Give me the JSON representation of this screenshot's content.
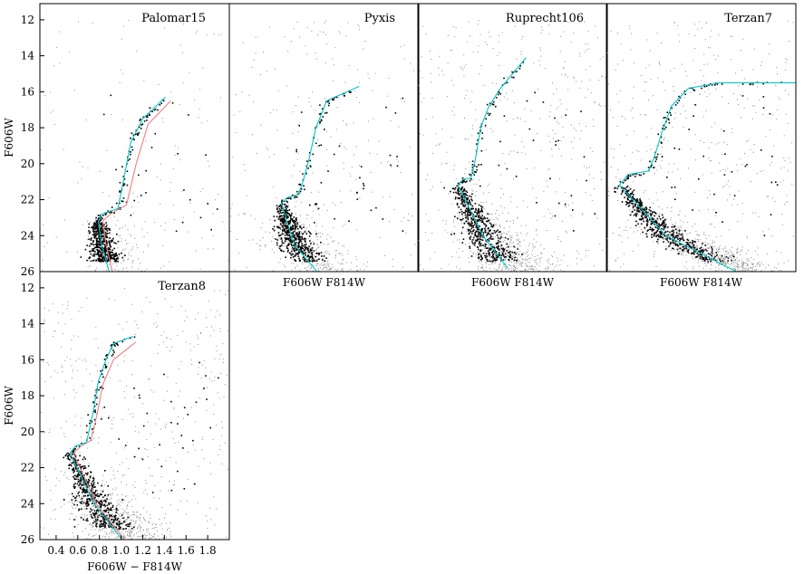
{
  "chart_data": [
    {
      "type": "scatter",
      "title": "Palomar15",
      "ylabel": "F606W",
      "xlabel": "",
      "xlim": [
        0.25,
        2.0
      ],
      "ylim": [
        26,
        11.1
      ],
      "yticks": [
        12,
        14,
        16,
        18,
        20,
        22,
        24,
        26
      ],
      "isochrone": [
        [
          0.89,
          26
        ],
        [
          0.82,
          24.5
        ],
        [
          0.79,
          23.2
        ],
        [
          0.82,
          22.8
        ],
        [
          0.97,
          22.5
        ],
        [
          1.02,
          21
        ],
        [
          1.09,
          18.8
        ],
        [
          1.2,
          17.5
        ],
        [
          1.41,
          16.3
        ]
      ],
      "isochrone_alt": [
        [
          0.92,
          26
        ],
        [
          0.86,
          24.5
        ],
        [
          0.83,
          23.2
        ],
        [
          0.9,
          22.8
        ],
        [
          1.05,
          22.3
        ],
        [
          1.14,
          20
        ],
        [
          1.25,
          17.8
        ],
        [
          1.46,
          16.5
        ]
      ],
      "ms_limit": 26,
      "field_density": "low"
    },
    {
      "type": "scatter",
      "title": "Pyxis",
      "ylabel": "",
      "xlabel": "F606W    F814W",
      "xlim": [
        0.25,
        2.0
      ],
      "ylim": [
        26,
        11.1
      ],
      "isochrone": [
        [
          1.06,
          26
        ],
        [
          0.85,
          24.5
        ],
        [
          0.73,
          22.2
        ],
        [
          0.78,
          21.9
        ],
        [
          0.89,
          21.7
        ],
        [
          0.93,
          21
        ],
        [
          0.98,
          19.9
        ],
        [
          1.05,
          18
        ],
        [
          1.15,
          16.5
        ],
        [
          1.45,
          15.7
        ]
      ],
      "field_density": "medium"
    },
    {
      "type": "scatter",
      "title": "Ruprecht106",
      "ylabel": "",
      "xlabel": "F606W    F814W",
      "xlim": [
        0.25,
        2.0
      ],
      "ylim": [
        26,
        11.1
      ],
      "isochrone": [
        [
          1.08,
          25.8
        ],
        [
          0.85,
          24
        ],
        [
          0.62,
          21.2
        ],
        [
          0.66,
          20.9
        ],
        [
          0.74,
          20.8
        ],
        [
          0.78,
          19.8
        ],
        [
          0.83,
          18
        ],
        [
          0.9,
          16.9
        ],
        [
          1.0,
          15.9
        ],
        [
          1.25,
          14.1
        ]
      ],
      "field_density": "high"
    },
    {
      "type": "scatter",
      "title": "Terzan7",
      "ylabel": "",
      "xlabel": "F606W    F814W",
      "xlim": [
        0.25,
        2.0
      ],
      "ylim": [
        26,
        11.1
      ],
      "isochrone": [
        [
          1.45,
          26
        ],
        [
          0.8,
          24
        ],
        [
          0.37,
          21.2
        ],
        [
          0.45,
          20.6
        ],
        [
          0.64,
          20.4
        ],
        [
          0.7,
          19.5
        ],
        [
          0.76,
          18.3
        ],
        [
          0.85,
          16.8
        ],
        [
          1.01,
          15.8
        ],
        [
          1.3,
          15.5
        ],
        [
          2.0,
          15.5
        ]
      ],
      "field_density": "high"
    },
    {
      "type": "scatter",
      "title": "Terzan8",
      "ylabel": "F606W",
      "xlabel": "F606W − F814W",
      "xlim": [
        0.25,
        2.0
      ],
      "ylim": [
        26,
        11.1
      ],
      "xticks": [
        0.4,
        0.6,
        0.8,
        1.0,
        1.2,
        1.4,
        1.6,
        1.8
      ],
      "yticks": [
        12,
        14,
        16,
        18,
        20,
        22,
        24,
        26
      ],
      "isochrone": [
        [
          1.01,
          26
        ],
        [
          0.75,
          24
        ],
        [
          0.53,
          21.2
        ],
        [
          0.58,
          20.8
        ],
        [
          0.68,
          20.6
        ],
        [
          0.74,
          19
        ],
        [
          0.79,
          17.2
        ],
        [
          0.86,
          16
        ],
        [
          0.93,
          15.1
        ],
        [
          1.11,
          14.7
        ]
      ],
      "isochrone_alt": [
        [
          1.03,
          26
        ],
        [
          0.77,
          24
        ],
        [
          0.56,
          21.2
        ],
        [
          0.63,
          20.8
        ],
        [
          0.72,
          20.5
        ],
        [
          0.78,
          19
        ],
        [
          0.83,
          17.4
        ],
        [
          0.93,
          16
        ],
        [
          1.14,
          15.0
        ]
      ],
      "field_density": "high"
    }
  ],
  "colors": {
    "isochrone": "#00c8c8",
    "isochrone_alt": "#f08080",
    "members": "#000000",
    "field": "#8c8c8c"
  }
}
